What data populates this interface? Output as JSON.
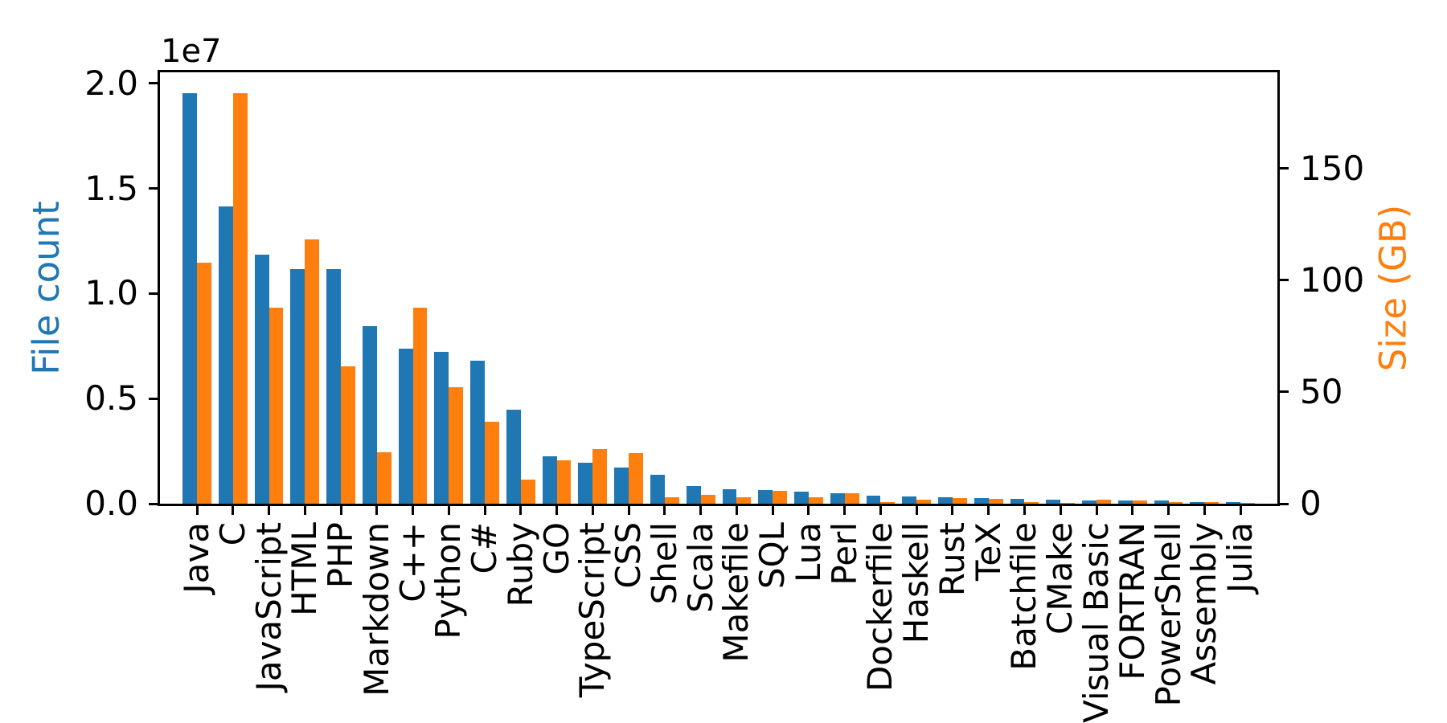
{
  "figure": {
    "background": "#ffffff",
    "axis_color": "#000000",
    "left_label_color": "#1f77b4",
    "right_label_color": "#ff7f0e"
  },
  "chart_data": {
    "type": "bar",
    "title": "",
    "xlabel": "",
    "ylabel_left": "File count",
    "ylabel_right": "Size (GB)",
    "offset_text_left": "1e7",
    "grid": false,
    "legend": "none",
    "ylim_left": [
      0,
      20525600
    ],
    "ylim_right": [
      0,
      193.02
    ],
    "yticks_left": {
      "values": [
        0,
        5000000,
        10000000,
        15000000,
        20000000
      ],
      "labels": [
        "0.0",
        "0.5",
        "1.0",
        "1.5",
        "2.0"
      ]
    },
    "yticks_right": {
      "values": [
        0,
        50,
        100,
        150
      ],
      "labels": [
        "0",
        "50",
        "100",
        "150"
      ]
    },
    "categories": [
      "Java",
      "C",
      "JavaScript",
      "HTML",
      "PHP",
      "Markdown",
      "C++",
      "Python",
      "C#",
      "Ruby",
      "GO",
      "TypeScript",
      "CSS",
      "Shell",
      "Scala",
      "Makefile",
      "SQL",
      "Lua",
      "Perl",
      "Dockerfile",
      "Haskell",
      "Rust",
      "TeX",
      "Batchfile",
      "CMake",
      "Visual Basic",
      "FORTRAN",
      "PowerShell",
      "Assembly",
      "Julia"
    ],
    "series": [
      {
        "name": "File count",
        "axis": "left",
        "color": "#1f77b4",
        "values": [
          19548190,
          14143113,
          11839883,
          11178557,
          11177610,
          8464626,
          7380520,
          7226626,
          6811652,
          4473331,
          2265436,
          1940406,
          1734406,
          1385648,
          835755,
          679430,
          656671,
          578554,
          497949,
          366505,
          340380,
          322431,
          251015,
          236945,
          175282,
          155652,
          142038,
          136846,
          82905,
          58317
        ]
      },
      {
        "name": "Size (GB)",
        "axis": "right",
        "color": "#ff7f0e",
        "values": [
          107.7,
          183.83,
          87.82,
          118.12,
          61.41,
          23.09,
          87.73,
          52.03,
          36.83,
          10.95,
          19.28,
          24.59,
          22.67,
          3.01,
          3.87,
          2.92,
          5.67,
          2.81,
          4.7,
          0.71,
          1.85,
          2.68,
          2.15,
          0.7,
          0.54,
          1.91,
          1.62,
          0.69,
          0.78,
          0.29
        ]
      }
    ]
  }
}
